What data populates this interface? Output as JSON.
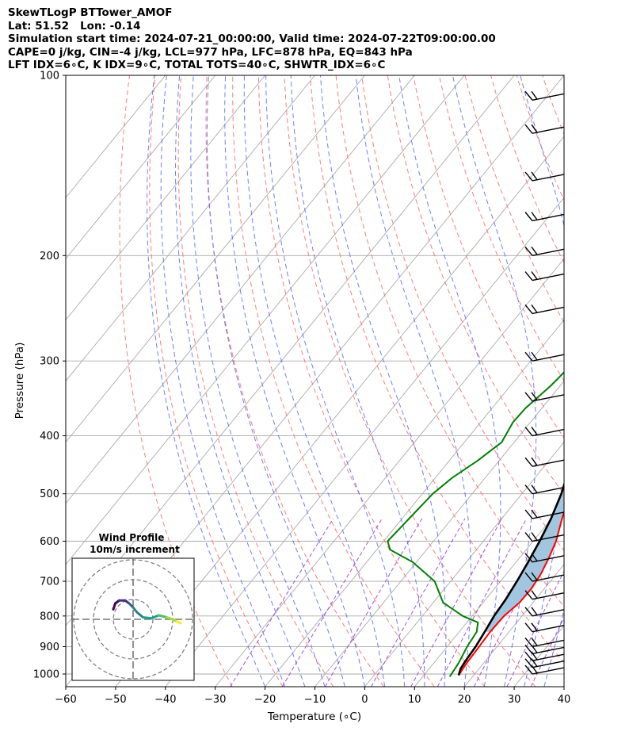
{
  "header": {
    "line1": "SkewTLogP BTTower_AMOF",
    "line2": "Lat: 51.52   Lon: -0.14",
    "line3": "Simulation start time: 2024-07-21_00:00:00, Valid time: 2024-07-22T09:00:00.00",
    "line4": "CAPE=0 j/kg, CIN=-4 j/kg, LCL=977 hPa, LFC=878 hPa, EQ=843 hPa",
    "line5": "LFT IDX=6∘C, K IDX=9∘C, TOTAL TOTS=40∘C, SHWTR_IDX=6∘C"
  },
  "chart_data": {
    "type": "line",
    "xlabel": "Temperature (∘C)",
    "ylabel": "Pressure (hPa)",
    "xlim": [
      -60,
      40
    ],
    "ylim": [
      1050,
      100
    ],
    "y_scale": "log",
    "skew": true,
    "x_ticks": [
      -60,
      -50,
      -40,
      -30,
      -20,
      -10,
      0,
      10,
      20,
      30,
      40
    ],
    "y_ticks": [
      100,
      200,
      300,
      400,
      500,
      600,
      700,
      800,
      900,
      1000
    ],
    "grid": true,
    "colors": {
      "temperature": "#ff0000",
      "dewpoint": "#008000",
      "parcel": "#000000",
      "fill": "#a3c6e0",
      "dry_adiabat": "#ff6666",
      "moist_adiabat": "#4a5cff",
      "mixing_ratio": "#9932cc",
      "isotherm": "#aaaaaa"
    },
    "series": [
      {
        "role": "temperature",
        "points": [
          [
            1005,
            17.0
          ],
          [
            960,
            16.6
          ],
          [
            900,
            16.4
          ],
          [
            850,
            16.2
          ],
          [
            800,
            16.4
          ],
          [
            760,
            17.3
          ],
          [
            720,
            17.4
          ],
          [
            680,
            16.9
          ],
          [
            640,
            15.9
          ],
          [
            600,
            14.6
          ],
          [
            550,
            12.1
          ],
          [
            500,
            9.6
          ],
          [
            450,
            6.9
          ],
          [
            400,
            3.5
          ],
          [
            350,
            0.0
          ],
          [
            300,
            -4.2
          ],
          [
            270,
            -7.3
          ],
          [
            250,
            -9.3
          ],
          [
            230,
            -9.2
          ],
          [
            210,
            -7.8
          ],
          [
            190,
            -5.4
          ],
          [
            180,
            -3.4
          ],
          [
            170,
            0.8
          ],
          [
            160,
            2.0
          ],
          [
            150,
            2.7
          ],
          [
            140,
            4.2
          ],
          [
            130,
            6.0
          ],
          [
            120,
            8.3
          ],
          [
            110,
            11.8
          ],
          [
            105,
            14.2
          ],
          [
            100,
            16.7
          ]
        ]
      },
      {
        "role": "dewpoint",
        "points": [
          [
            1010,
            15.4
          ],
          [
            960,
            15.0
          ],
          [
            900,
            14.0
          ],
          [
            850,
            13.5
          ],
          [
            820,
            12.2
          ],
          [
            800,
            8.1
          ],
          [
            760,
            2.0
          ],
          [
            700,
            -3.2
          ],
          [
            650,
            -10.8
          ],
          [
            620,
            -17.3
          ],
          [
            600,
            -19.2
          ],
          [
            550,
            -18.6
          ],
          [
            500,
            -17.9
          ],
          [
            470,
            -16.6
          ],
          [
            440,
            -14.3
          ],
          [
            410,
            -12.5
          ],
          [
            380,
            -13.5
          ],
          [
            360,
            -13.3
          ],
          [
            330,
            -11.9
          ],
          [
            300,
            -11.0
          ],
          [
            270,
            -11.4
          ],
          [
            250,
            -12.5
          ],
          [
            230,
            -12.8
          ],
          [
            210,
            -13.1
          ],
          [
            195,
            -14.5
          ],
          [
            185,
            -16.6
          ],
          [
            175,
            -19.3
          ],
          [
            165,
            -23.0
          ],
          [
            150,
            -22.6
          ],
          [
            140,
            -21.0
          ],
          [
            130,
            -18.4
          ],
          [
            120,
            -15.3
          ],
          [
            110,
            -12.1
          ],
          [
            100,
            -8.8
          ]
        ]
      },
      {
        "role": "parcel",
        "points": [
          [
            1005,
            17.0
          ],
          [
            980,
            16.3
          ],
          [
            950,
            16.0
          ],
          [
            900,
            15.7
          ],
          [
            850,
            15.1
          ],
          [
            800,
            14.4
          ],
          [
            750,
            14.0
          ],
          [
            700,
            13.3
          ],
          [
            650,
            12.4
          ],
          [
            600,
            11.3
          ],
          [
            550,
            9.9
          ],
          [
            500,
            7.9
          ],
          [
            450,
            5.1
          ],
          [
            400,
            1.2
          ],
          [
            350,
            -4.3
          ],
          [
            300,
            -11.2
          ],
          [
            250,
            -19.6
          ],
          [
            200,
            -29.0
          ],
          [
            180,
            -33.3
          ],
          [
            160,
            -37.8
          ],
          [
            140,
            -42.6
          ],
          [
            120,
            -47.7
          ],
          [
            110,
            -50.4
          ],
          [
            100,
            -53.2
          ]
        ]
      }
    ],
    "wind_barbs": {
      "levels_hpa": [
        1000,
        975,
        950,
        925,
        900,
        850,
        800,
        750,
        700,
        650,
        600,
        550,
        500,
        450,
        400,
        350,
        300,
        250,
        220,
        200,
        175,
        150,
        125,
        110
      ]
    },
    "inset": {
      "title": "Wind Profile",
      "subtitle": "10m/s increment",
      "hodograph": [
        [
          -10,
          5
        ],
        [
          -9,
          8
        ],
        [
          -7,
          9.5
        ],
        [
          -4,
          9.5
        ],
        [
          -2,
          8
        ],
        [
          0,
          6
        ],
        [
          2,
          3.5
        ],
        [
          5,
          1
        ],
        [
          9,
          0.5
        ],
        [
          13,
          2
        ],
        [
          17,
          1
        ],
        [
          20,
          0
        ],
        [
          22,
          -1
        ],
        [
          24,
          -2
        ]
      ]
    }
  }
}
